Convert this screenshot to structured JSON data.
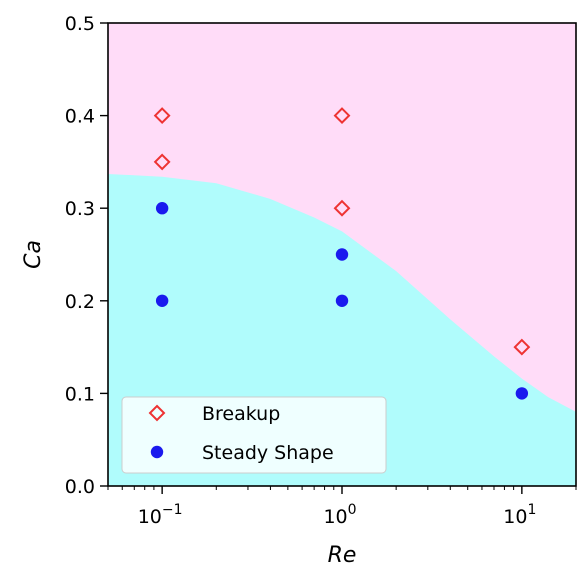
{
  "chart_data": {
    "type": "scatter",
    "xlabel": "Re",
    "ylabel": "Ca",
    "xscale": "log",
    "xlim": [
      0.05,
      20
    ],
    "ylim": [
      0,
      0.5
    ],
    "x_ticks": [
      {
        "value": 0.1,
        "base": "10",
        "exp": "−1"
      },
      {
        "value": 1,
        "base": "10",
        "exp": "0"
      },
      {
        "value": 10,
        "base": "10",
        "exp": "1"
      }
    ],
    "y_ticks": [
      "0.0",
      "0.1",
      "0.2",
      "0.3",
      "0.4",
      "0.5"
    ],
    "grid": false,
    "legend_position": "lower-left",
    "regions": {
      "upper_color": "#ffdcf8",
      "lower_color": "#b0fcfc",
      "boundary": [
        {
          "x": 0.05,
          "y": 0.337
        },
        {
          "x": 0.1,
          "y": 0.334
        },
        {
          "x": 0.2,
          "y": 0.327
        },
        {
          "x": 0.4,
          "y": 0.31
        },
        {
          "x": 0.7,
          "y": 0.29
        },
        {
          "x": 1,
          "y": 0.275
        },
        {
          "x": 2,
          "y": 0.232
        },
        {
          "x": 4,
          "y": 0.18
        },
        {
          "x": 7,
          "y": 0.14
        },
        {
          "x": 10,
          "y": 0.116
        },
        {
          "x": 14,
          "y": 0.096
        },
        {
          "x": 20,
          "y": 0.08
        }
      ]
    },
    "series": [
      {
        "name": "Breakup",
        "marker": "diamond-open",
        "color": "#ee3333",
        "points": [
          {
            "x": 0.1,
            "y": 0.4
          },
          {
            "x": 0.1,
            "y": 0.35
          },
          {
            "x": 1,
            "y": 0.4
          },
          {
            "x": 1,
            "y": 0.3
          },
          {
            "x": 10,
            "y": 0.15
          }
        ]
      },
      {
        "name": "Steady Shape",
        "marker": "circle-filled",
        "color": "#1a1aee",
        "points": [
          {
            "x": 0.1,
            "y": 0.3
          },
          {
            "x": 0.1,
            "y": 0.2
          },
          {
            "x": 1,
            "y": 0.25
          },
          {
            "x": 1,
            "y": 0.2
          },
          {
            "x": 10,
            "y": 0.1
          }
        ]
      }
    ]
  }
}
